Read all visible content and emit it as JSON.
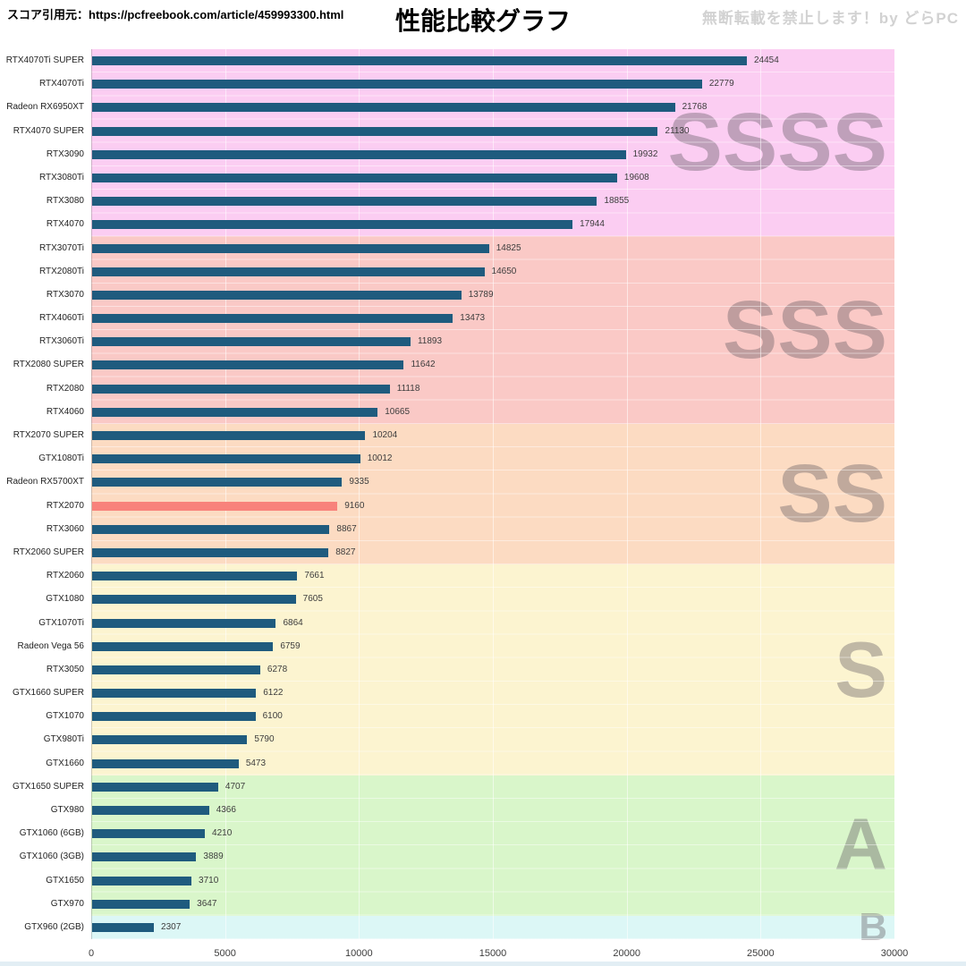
{
  "header": {
    "source": "スコア引用元：https://pcfreebook.com/article/459993300.html",
    "title": "性能比較グラフ",
    "watermark": "無断転載を禁止します！by どらPC"
  },
  "chart_data": {
    "type": "bar",
    "orientation": "horizontal",
    "title": "性能比較グラフ",
    "xlabel": "",
    "ylabel": "",
    "xlim": [
      0,
      30000
    ],
    "x_ticks": [
      0,
      5000,
      10000,
      15000,
      20000,
      25000,
      30000
    ],
    "grid": true,
    "bar_color": "#1f5b7e",
    "highlight_color": "#f8827b",
    "highlight_index": 19,
    "tier_letter_color": "rgba(95,88,95,0.38)",
    "categories": [
      "RTX4070Ti SUPER",
      "RTX4070Ti",
      "Radeon RX6950XT",
      "RTX4070 SUPER",
      "RTX3090",
      "RTX3080Ti",
      "RTX3080",
      "RTX4070",
      "RTX3070Ti",
      "RTX2080Ti",
      "RTX3070",
      "RTX4060Ti",
      "RTX3060Ti",
      "RTX2080 SUPER",
      "RTX2080",
      "RTX4060",
      "RTX2070 SUPER",
      "GTX1080Ti",
      "Radeon RX5700XT",
      "RTX2070",
      "RTX3060",
      "RTX2060 SUPER",
      "RTX2060",
      "GTX1080",
      "GTX1070Ti",
      "Radeon Vega 56",
      "RTX3050",
      "GTX1660 SUPER",
      "GTX1070",
      "GTX980Ti",
      "GTX1660",
      "GTX1650 SUPER",
      "GTX980",
      "GTX1060 (6GB)",
      "GTX1060 (3GB)",
      "GTX1650",
      "GTX970",
      "GTX960 (2GB)"
    ],
    "values": [
      24454,
      22779,
      21768,
      21130,
      19932,
      19608,
      18855,
      17944,
      14825,
      14650,
      13789,
      13473,
      11893,
      11642,
      11118,
      10665,
      10204,
      10012,
      9335,
      9160,
      8867,
      8827,
      7661,
      7605,
      6864,
      6759,
      6278,
      6122,
      6100,
      5790,
      5473,
      4707,
      4366,
      4210,
      3889,
      3710,
      3647,
      2307
    ],
    "tiers": [
      {
        "label": "SSSS",
        "color": "#fbcdf2",
        "count": 8,
        "letter_size": 92
      },
      {
        "label": "SSS",
        "color": "#fac9c6",
        "count": 8,
        "letter_size": 92
      },
      {
        "label": "SS",
        "color": "#fcdbc2",
        "count": 6,
        "letter_size": 92
      },
      {
        "label": "S",
        "color": "#fcf4d0",
        "count": 9,
        "letter_size": 88
      },
      {
        "label": "A",
        "color": "#d9f6ca",
        "count": 6,
        "letter_size": 82
      },
      {
        "label": "B",
        "color": "#dcf7f6",
        "count": 1,
        "letter_size": 44
      }
    ]
  }
}
